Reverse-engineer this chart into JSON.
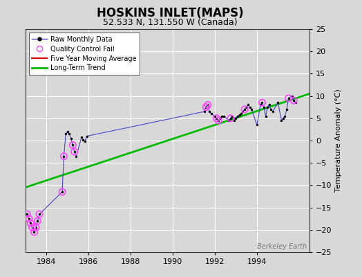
{
  "title": "HOSKINS INLET(MAPS)",
  "subtitle": "52.533 N, 131.550 W (Canada)",
  "ylabel": "Temperature Anomaly (°C)",
  "watermark": "Berkeley Earth",
  "xlim": [
    1983.0,
    1996.5
  ],
  "ylim": [
    -25,
    25
  ],
  "yticks": [
    -25,
    -20,
    -15,
    -10,
    -5,
    0,
    5,
    10,
    15,
    20,
    25
  ],
  "xticks": [
    1984,
    1986,
    1988,
    1990,
    1992,
    1994
  ],
  "background_color": "#d8d8d8",
  "plot_bg_color": "#d8d8d8",
  "raw_x": [
    1983.08,
    1983.17,
    1983.25,
    1983.33,
    1983.42,
    1983.5,
    1983.58,
    1983.67,
    1984.75,
    1984.83,
    1984.92,
    1985.0,
    1985.08,
    1985.17,
    1985.25,
    1985.33,
    1985.42,
    1985.67,
    1985.75,
    1985.83,
    1985.92,
    1991.5,
    1991.58,
    1991.67,
    1991.75,
    1991.83,
    1992.0,
    1992.08,
    1992.17,
    1992.25,
    1992.33,
    1992.42,
    1992.67,
    1992.75,
    1992.83,
    1992.92,
    1993.0,
    1993.08,
    1993.17,
    1993.25,
    1993.33,
    1993.42,
    1993.5,
    1993.58,
    1993.67,
    1993.75,
    1994.0,
    1994.17,
    1994.25,
    1994.33,
    1994.42,
    1994.5,
    1994.58,
    1994.67,
    1994.75,
    1995.0,
    1995.17,
    1995.25,
    1995.33,
    1995.42,
    1995.5,
    1995.67,
    1995.75,
    1995.83
  ],
  "raw_y": [
    -16.5,
    -17.5,
    -18.5,
    -19.5,
    -20.5,
    -19.5,
    -18.0,
    -16.5,
    -11.5,
    -3.5,
    1.5,
    2.0,
    1.5,
    0.5,
    -1.0,
    -2.5,
    -3.5,
    0.8,
    0.2,
    -0.2,
    1.0,
    6.5,
    7.5,
    8.0,
    6.5,
    6.0,
    5.5,
    5.0,
    4.5,
    5.0,
    5.5,
    5.5,
    4.5,
    5.0,
    5.5,
    4.5,
    5.0,
    5.5,
    5.8,
    6.0,
    6.5,
    7.0,
    7.5,
    8.0,
    7.5,
    7.0,
    3.5,
    8.0,
    8.5,
    7.5,
    5.5,
    7.5,
    8.0,
    7.0,
    6.5,
    8.5,
    4.5,
    5.0,
    5.5,
    7.0,
    9.5,
    10.0,
    9.0,
    8.5
  ],
  "qc_fail_x": [
    1983.08,
    1983.17,
    1983.25,
    1983.33,
    1983.42,
    1983.5,
    1983.58,
    1983.67,
    1984.75,
    1984.83,
    1985.25,
    1985.33,
    1991.58,
    1991.67,
    1992.08,
    1992.17,
    1992.75,
    1993.42,
    1994.25,
    1995.5,
    1995.75
  ],
  "qc_fail_y": [
    -16.5,
    -17.5,
    -18.5,
    -19.5,
    -20.5,
    -19.5,
    -18.0,
    -16.5,
    -11.5,
    -3.5,
    -1.0,
    -2.5,
    7.5,
    8.0,
    5.0,
    4.5,
    5.0,
    7.0,
    8.5,
    9.5,
    9.0
  ],
  "trend_x": [
    1983.0,
    1996.5
  ],
  "trend_y": [
    -10.5,
    10.5
  ],
  "raw_line_color": "#4444cc",
  "raw_dot_color": "#000000",
  "qc_color": "#ff44ff",
  "trend_color": "#00bb00",
  "moving_avg_color": "#dd0000",
  "grid_color": "#ffffff",
  "title_fontsize": 12,
  "subtitle_fontsize": 9,
  "label_fontsize": 8,
  "tick_fontsize": 8,
  "legend_fontsize": 7
}
